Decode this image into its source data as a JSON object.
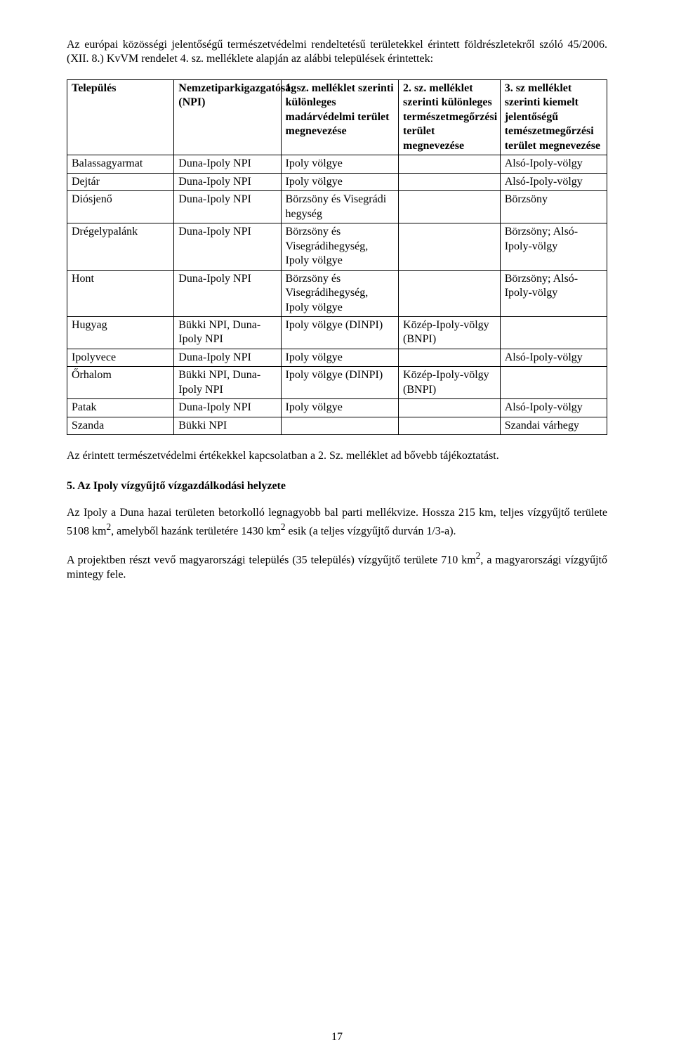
{
  "intro": "Az európai közösségi jelentőségű természetvédelmi rendeltetésű területekkel érintett földrészletekről szóló 45/2006. (XII. 8.) KvVM rendelet 4. sz. melléklete alapján az alábbi települések érintettek:",
  "table": {
    "headers": {
      "h1": "Település",
      "h2": "Nemzetiparkigazgatóság (NPI)",
      "h3": "1. sz. melléklet szerinti különleges madárvédelmi terület megnevezése",
      "h4": "2. sz. melléklet szerinti különleges természetmegőrzési terület megnevezése",
      "h5": "3. sz melléklet szerinti kiemelt jelentőségű temészetmegőrzési terület megnevezése"
    },
    "rows": [
      {
        "c1": "Balassagyarmat",
        "c2": "Duna-Ipoly NPI",
        "c3": "Ipoly völgye",
        "c4": "",
        "c5": "Alsó-Ipoly-völgy"
      },
      {
        "c1": "Dejtár",
        "c2": "Duna-Ipoly NPI",
        "c3": "Ipoly völgye",
        "c4": "",
        "c5": "Alsó-Ipoly-völgy"
      },
      {
        "c1": "Diósjenő",
        "c2": "Duna-Ipoly NPI",
        "c3": "Börzsöny és Visegrádi hegység",
        "c4": "",
        "c5": "Börzsöny"
      },
      {
        "c1": "Drégelypalánk",
        "c2": "Duna-Ipoly NPI",
        "c3": "Börzsöny és Visegrádihegység, Ipoly völgye",
        "c4": "",
        "c5": "Börzsöny; Alsó-Ipoly-völgy"
      },
      {
        "c1": "Hont",
        "c2": "Duna-Ipoly NPI",
        "c3": "Börzsöny és Visegrádihegység, Ipoly völgye",
        "c4": "",
        "c5": "Börzsöny; Alsó-Ipoly-völgy"
      },
      {
        "c1": "Hugyag",
        "c2": "Bükki NPI, Duna-Ipoly NPI",
        "c3": "Ipoly völgye (DINPI)",
        "c4": "Közép-Ipoly-völgy (BNPI)",
        "c5": ""
      },
      {
        "c1": "Ipolyvece",
        "c2": "Duna-Ipoly NPI",
        "c3": "Ipoly völgye",
        "c4": "",
        "c5": "Alsó-Ipoly-völgy"
      },
      {
        "c1": "Őrhalom",
        "c2": "Bükki NPI, Duna-Ipoly NPI",
        "c3": "Ipoly völgye (DINPI)",
        "c4": "Közép-Ipoly-völgy (BNPI)",
        "c5": ""
      },
      {
        "c1": "Patak",
        "c2": "Duna-Ipoly NPI",
        "c3": "Ipoly völgye",
        "c4": "",
        "c5": "Alsó-Ipoly-völgy"
      },
      {
        "c1": "Szanda",
        "c2": "Bükki NPI",
        "c3": "",
        "c4": "",
        "c5": "Szandai várhegy"
      }
    ]
  },
  "after_table": "Az érintett természetvédelmi értékekkel kapcsolatban a 2. Sz. melléklet ad bővebb tájékoztatást.",
  "section_heading": "5.  Az Ipoly vízgyűjtő vízgazdálkodási helyzete",
  "body1_pre": "Az Ipoly a Duna hazai területen betorkolló legnagyobb bal parti mellékvize. Hossza 215 km, teljes vízgyűjtő területe 5108 km",
  "body1_sup1": "2",
  "body1_mid": ", amelyből hazánk területére 1430 km",
  "body1_sup2": "2",
  "body1_post": " esik (a teljes vízgyűjtő durván 1/3-a).",
  "body2_pre": "A projektben részt vevő magyarországi település (35 település) vízgyűjtő területe 710 km",
  "body2_sup": "2",
  "body2_post": ", a magyarországi vízgyűjtő mintegy fele.",
  "page_number": "17"
}
